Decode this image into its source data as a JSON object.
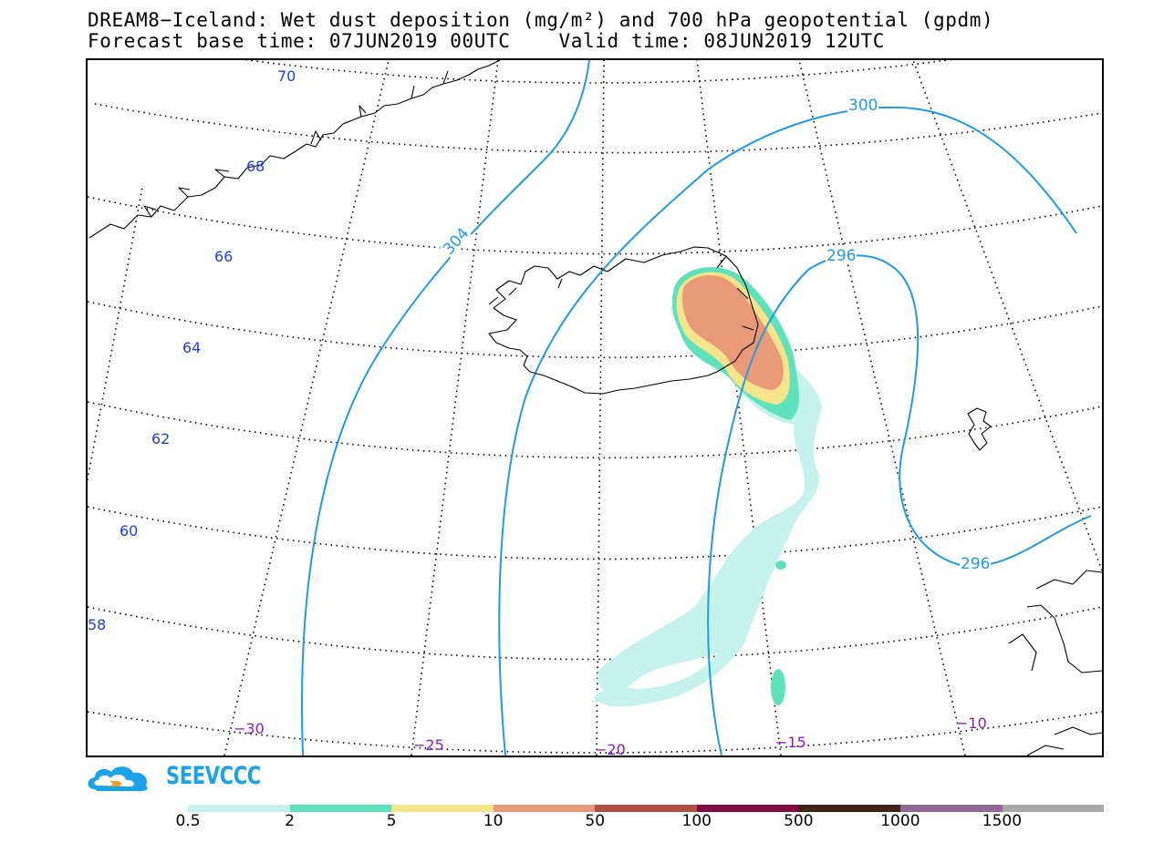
{
  "title_line1": "DREAM8−Iceland: Wet dust deposition (mg/m²) and 700 hPa geopotential (gpdm)",
  "title_line2": "Forecast base time: 07JUN2019 00UTC    Valid time: 08JUN2019 12UTC",
  "lat_labels": [
    "70",
    "68",
    "66",
    "64",
    "62",
    "60",
    "58"
  ],
  "lon_labels": [
    "−30",
    "−25",
    "−20",
    "−15",
    "−10"
  ],
  "contour_labels": [
    "304",
    "300",
    "296",
    "296"
  ],
  "logo_text": "SEEVCCC",
  "legend": {
    "colors": [
      "#c5f3eb",
      "#5ee2bb",
      "#f6e48a",
      "#e79a75",
      "#b25045",
      "#820a3c",
      "#3e2414",
      "#8e6797",
      "#a8a8a8"
    ],
    "labels": [
      "0.5",
      "2",
      "5",
      "10",
      "50",
      "100",
      "500",
      "1000",
      "1500"
    ]
  },
  "colors": {
    "contour": "#1f9be6",
    "lat_label": "#1f3df0",
    "lon_label": "#8a1cc8",
    "coast": "#000000"
  }
}
